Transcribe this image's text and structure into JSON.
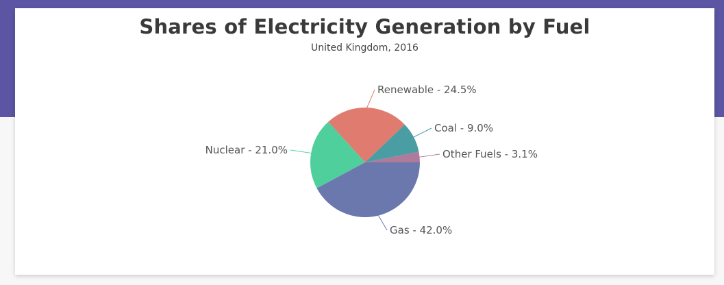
{
  "header": {
    "title": "Shares of Electricity Generation by Fuel",
    "subtitle": "United Kingdom, 2016"
  },
  "chart_data": {
    "type": "pie",
    "title": "Shares of Electricity Generation by Fuel",
    "subtitle": "United Kingdom, 2016",
    "slices": [
      {
        "label": "Other Fuels",
        "value": 3.1,
        "color": "#b07a9a"
      },
      {
        "label": "Coal",
        "value": 9.0,
        "color": "#4a9da3"
      },
      {
        "label": "Renewable",
        "value": 24.5,
        "color": "#e07b6f"
      },
      {
        "label": "Nuclear",
        "value": 21.0,
        "color": "#4fcf9c"
      },
      {
        "label": "Gas",
        "value": 42.0,
        "color": "#6b78ae"
      }
    ],
    "label_format": "{label} - {value}%"
  },
  "colors": {
    "band": "#5b55a4",
    "card": "#ffffff"
  }
}
